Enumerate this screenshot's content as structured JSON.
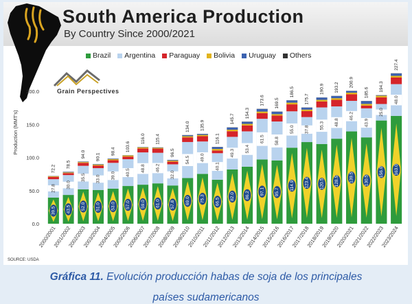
{
  "header": {
    "title": "South America Production",
    "subtitle": "By Country Since 2000/2021",
    "logo_text": "Grain Perspectives",
    "source": "SOURCE: USDA"
  },
  "caption": {
    "label": "Gráfica 11.",
    "text": " Evolución producción habas de soja de los principales",
    "text2": "países sudamericanos"
  },
  "colors": {
    "brazil": "#2e9b3c",
    "brazil_diamond": "#f0d22a",
    "brazil_circle": "#1f4a8c",
    "argentina": "#b9d3ee",
    "argentina_stripe": "#ffffff",
    "paraguay": "#d5242a",
    "bolivia": "#e1b31b",
    "uruguay": "#3c62b0",
    "others": "#333333",
    "title_text": "#1f1f1f",
    "caption": "#2d5aa6"
  },
  "chart_data": {
    "type": "bar",
    "stacked": true,
    "ylabel": "Production (MMT's)",
    "ylim": [
      0,
      250
    ],
    "yticks": [
      "0.0",
      "50.0",
      "100.0",
      "150.0",
      "200.0"
    ],
    "categories": [
      "2000/2001",
      "2001/2002",
      "2002/2003",
      "2003/2004",
      "2004/2005",
      "2005/2006",
      "2006/2007",
      "2007/2008",
      "2008/2009",
      "2009/2010",
      "2010/2011",
      "2011/2012",
      "2012/2013",
      "2013/2014",
      "2014/2015",
      "2015/2016",
      "2016/2017",
      "2017/2018",
      "2018/2019",
      "2019/2020",
      "2020/2021",
      "2021/2022",
      "2022/2023",
      "2023/2024"
    ],
    "totals": [
      "72.2",
      "78.5",
      "94.0",
      "90.1",
      "98.4",
      "103.6",
      "116.0",
      "115.4",
      "96.5",
      "134.0",
      "135.9",
      "116.1",
      "145.7",
      "154.3",
      "173.6",
      "169.5",
      "186.5",
      "175.7",
      "190.9",
      "193.2",
      "200.9",
      "185.6",
      "194.3",
      "227.4"
    ],
    "totals_numeric": [
      72.2,
      78.5,
      94.0,
      90.1,
      98.4,
      103.6,
      116.0,
      115.4,
      96.5,
      134.0,
      135.9,
      116.1,
      145.7,
      154.3,
      173.6,
      169.5,
      186.5,
      175.7,
      190.9,
      193.2,
      200.9,
      185.6,
      194.3,
      227.4
    ],
    "series": [
      {
        "name": "Brazil",
        "values": [
          39.5,
          43.5,
          52.0,
          51.0,
          53.0,
          57.0,
          59.0,
          61.0,
          57.8,
          69.0,
          75.3,
          66.5,
          82.0,
          86.2,
          97.1,
          95.7,
          114.9,
          123.4,
          120.5,
          128.5,
          139.5,
          130.5,
          156.0,
          163.0
        ],
        "labels": [
          "39.5",
          "43.5",
          "52.0",
          "51.0",
          "53.0",
          "57.0",
          "59.0",
          "61.0",
          "57.8",
          "69.0",
          "75.3",
          "66.5",
          "82.0",
          "86.2",
          "97.1",
          "95.7",
          "114.9",
          "123.4",
          "120.5",
          "128.5",
          "139.5",
          "130.5",
          "156.0",
          "163.0"
        ]
      },
      {
        "name": "Argentina",
        "values": [
          27.8,
          30.0,
          35.5,
          33.0,
          39.0,
          40.5,
          48.8,
          46.2,
          32.0,
          54.5,
          49.0,
          40.1,
          49.3,
          53.4,
          61.5,
          58.8,
          55.0,
          37.8,
          55.3,
          48.8,
          46.2,
          43.9,
          25.0,
          48.0
        ],
        "labels": [
          "27.8",
          "30.0",
          "35.5",
          "33.0",
          "39.0",
          "40.5",
          "48.8",
          "46.2",
          "32.0",
          "54.5",
          "49.0",
          "40.1",
          "49.3",
          "53.4",
          "61.5",
          "58.8",
          "55.0",
          "37.8",
          "55.3",
          "48.8",
          "46.2",
          "43.9",
          "25.0",
          "48.0"
        ]
      },
      {
        "name": "Paraguay",
        "values": [
          3.5,
          3.0,
          4.5,
          4.0,
          4.0,
          4.0,
          6.0,
          6.3,
          4.0,
          7.0,
          8.0,
          4.0,
          8.5,
          9.0,
          8.5,
          9.0,
          10.5,
          9.0,
          9.0,
          9.9,
          9.9,
          4.2,
          10.0,
          10.0
        ]
      },
      {
        "name": "Bolivia",
        "values": [
          1.0,
          1.0,
          1.2,
          1.3,
          1.5,
          1.6,
          1.6,
          1.2,
          1.5,
          1.7,
          1.9,
          2.4,
          2.3,
          2.3,
          2.4,
          2.1,
          2.6,
          2.3,
          2.4,
          2.5,
          2.5,
          2.5,
          2.4,
          2.5
        ]
      },
      {
        "name": "Uruguay",
        "values": [
          0.2,
          0.7,
          0.6,
          0.6,
          0.7,
          0.3,
          0.4,
          0.5,
          1.0,
          1.5,
          1.5,
          2.8,
          3.3,
          3.1,
          3.8,
          3.6,
          3.2,
          2.9,
          3.5,
          3.3,
          2.5,
          4.3,
          0.6,
          3.6
        ]
      },
      {
        "name": "Others",
        "values": [
          0.2,
          0.3,
          0.2,
          0.2,
          0.2,
          0.2,
          0.2,
          0.2,
          0.2,
          0.3,
          0.2,
          0.3,
          0.3,
          0.3,
          0.3,
          0.3,
          0.3,
          0.3,
          0.2,
          0.2,
          0.3,
          0.2,
          0.3,
          0.3
        ]
      }
    ],
    "legend_position": "top",
    "grid": false
  }
}
